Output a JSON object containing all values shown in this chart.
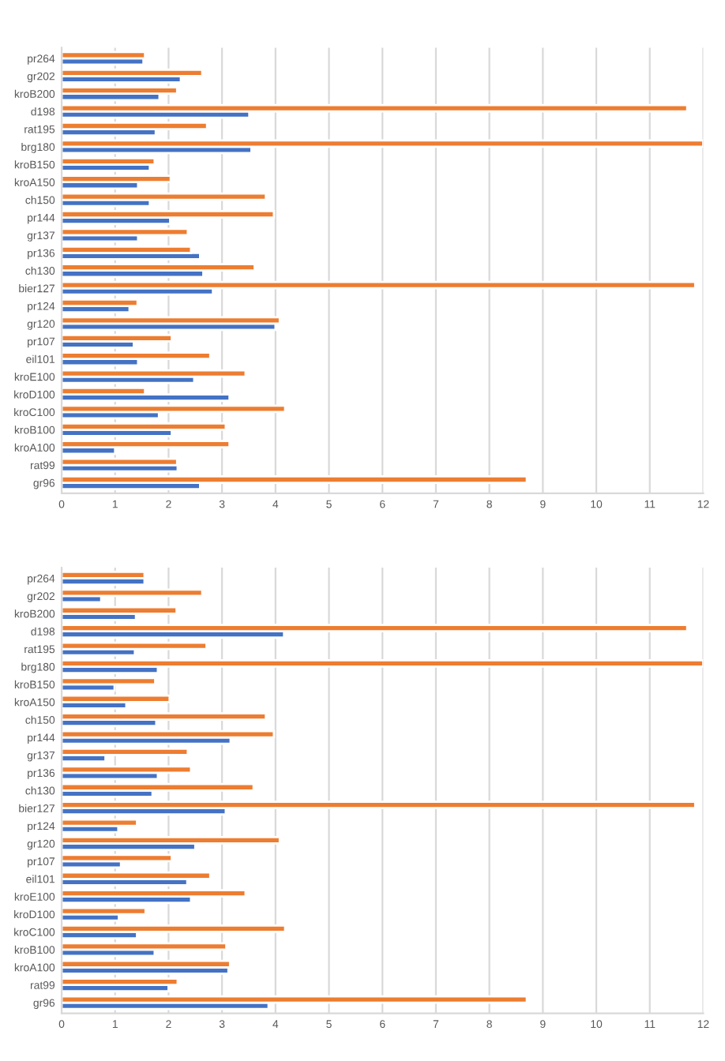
{
  "chart_data": [
    {
      "type": "bar",
      "orientation": "horizontal",
      "categories": [
        "pr264",
        "gr202",
        "kroB200",
        "d198",
        "rat195",
        "brg180",
        "kroB150",
        "kroA150",
        "ch150",
        "pr144",
        "gr137",
        "pr136",
        "ch130",
        "bier127",
        "pr124",
        "gr120",
        "pr107",
        "eil101",
        "kroE100",
        "kroD100",
        "kroC100",
        "kroB100",
        "kroA100",
        "rat99",
        "gr96"
      ],
      "series": [
        {
          "color": "#4472c4",
          "values": [
            1.53,
            2.23,
            1.83,
            3.51,
            1.76,
            3.55,
            1.65,
            1.43,
            1.65,
            2.03,
            1.43,
            2.59,
            2.65,
            2.83,
            1.27,
            4.0,
            1.35,
            1.43,
            2.48,
            3.14,
            1.82,
            2.06,
            1.0,
            2.17,
            2.59
          ]
        },
        {
          "color": "#ed7d31",
          "values": [
            1.56,
            2.63,
            2.16,
            11.7,
            2.72,
            12.0,
            1.74,
            2.04,
            3.82,
            3.97,
            2.36,
            2.42,
            3.61,
            11.85,
            1.42,
            4.08,
            2.06,
            2.78,
            3.44,
            1.56,
            4.18,
            3.07,
            3.14,
            2.16,
            8.7
          ]
        }
      ],
      "xlim": [
        0,
        12
      ],
      "xticks": [
        0,
        1,
        2,
        3,
        4,
        5,
        6,
        7,
        8,
        9,
        10,
        11,
        12
      ],
      "grid": "x",
      "legend": false
    },
    {
      "type": "bar",
      "orientation": "horizontal",
      "categories": [
        "pr264",
        "gr202",
        "kroB200",
        "d198",
        "rat195",
        "brg180",
        "kroB150",
        "kroA150",
        "ch150",
        "pr144",
        "gr137",
        "pr136",
        "ch130",
        "bier127",
        "pr124",
        "gr120",
        "pr107",
        "eil101",
        "kroE100",
        "kroD100",
        "kroC100",
        "kroB100",
        "kroA100",
        "rat99",
        "gr96"
      ],
      "series": [
        {
          "color": "#4472c4",
          "values": [
            1.55,
            0.74,
            1.39,
            4.16,
            1.37,
            1.8,
            0.99,
            1.21,
            1.77,
            3.16,
            0.82,
            1.8,
            1.7,
            3.07,
            1.06,
            2.5,
            1.11,
            2.35,
            2.42,
            1.07,
            1.41,
            1.74,
            3.12,
            2.0,
            3.87
          ]
        },
        {
          "color": "#ed7d31",
          "values": [
            1.55,
            2.63,
            2.15,
            11.7,
            2.71,
            12.0,
            1.75,
            2.02,
            3.82,
            3.97,
            2.36,
            2.42,
            3.59,
            11.85,
            1.41,
            4.08,
            2.06,
            2.78,
            3.44,
            1.57,
            4.18,
            3.08,
            3.15,
            2.17,
            8.7
          ]
        }
      ],
      "xlim": [
        0,
        12
      ],
      "xticks": [
        0,
        1,
        2,
        3,
        4,
        5,
        6,
        7,
        8,
        9,
        10,
        11,
        12
      ],
      "grid": "x",
      "legend": false
    }
  ]
}
